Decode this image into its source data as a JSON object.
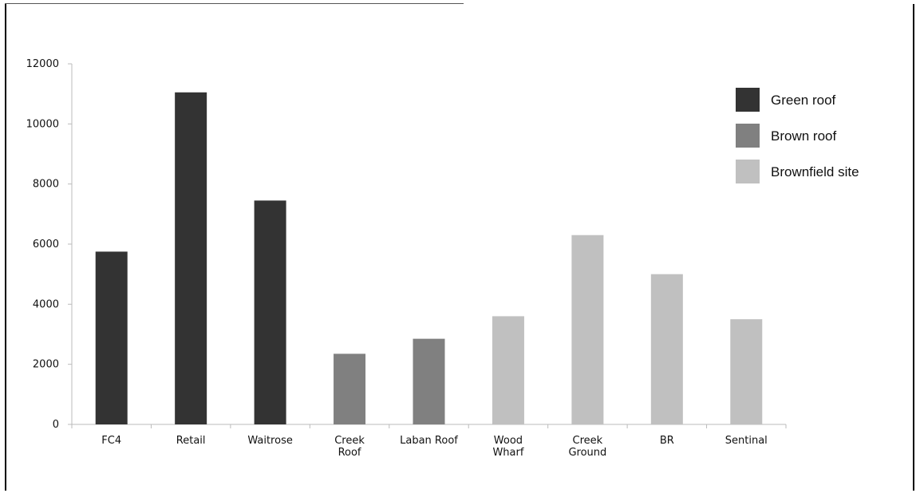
{
  "chart_data": {
    "type": "bar",
    "title": "",
    "xlabel": "",
    "ylabel": "",
    "ylim": [
      0,
      12000
    ],
    "yticks": [
      0,
      2000,
      4000,
      6000,
      8000,
      10000,
      12000
    ],
    "grid": false,
    "legend_position": "top-right",
    "categories": [
      [
        "FC4"
      ],
      [
        "Retail"
      ],
      [
        "Waitrose"
      ],
      [
        "Creek",
        "Roof"
      ],
      [
        "Laban Roof"
      ],
      [
        "Wood",
        "Wharf"
      ],
      [
        "Creek",
        "Ground"
      ],
      [
        "BR"
      ],
      [
        "Sentinal"
      ]
    ],
    "values": [
      5750,
      11050,
      7450,
      2350,
      2850,
      3600,
      6300,
      5000,
      3500
    ],
    "groups": [
      0,
      0,
      0,
      1,
      1,
      2,
      2,
      2,
      2
    ],
    "series": [
      {
        "name": "Green roof",
        "color": "#333333"
      },
      {
        "name": "Brown roof",
        "color": "#808080"
      },
      {
        "name": "Brownfield site",
        "color": "#c0c0c0"
      }
    ]
  }
}
